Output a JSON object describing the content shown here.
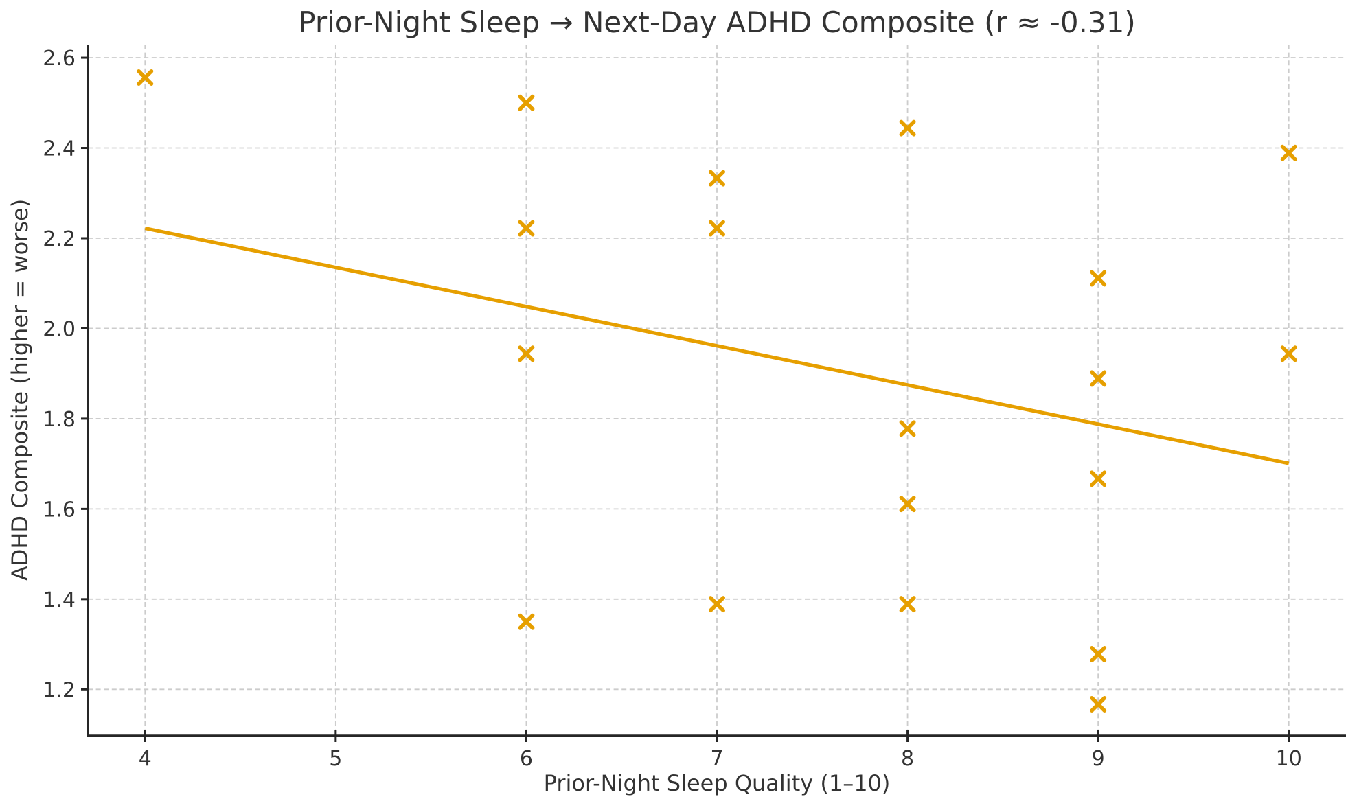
{
  "chart_data": {
    "type": "scatter",
    "title": "Prior-Night Sleep → Next-Day ADHD Composite (r ≈ -0.31)",
    "xlabel": "Prior-Night Sleep Quality (1–10)",
    "ylabel": "ADHD Composite (higher = worse)",
    "correlation_r": -0.31,
    "marker_style": "x",
    "grid": true,
    "legend": null,
    "xlim": [
      3.7,
      10.3
    ],
    "ylim": [
      1.097,
      2.629
    ],
    "xticks": [
      4,
      5,
      6,
      7,
      8,
      9,
      10
    ],
    "yticks": [
      1.2,
      1.4,
      1.6,
      1.8,
      2.0,
      2.2,
      2.4,
      2.6
    ],
    "points": [
      {
        "x": 4,
        "y": 2.556
      },
      {
        "x": 6,
        "y": 2.5
      },
      {
        "x": 6,
        "y": 2.222
      },
      {
        "x": 6,
        "y": 1.944
      },
      {
        "x": 6,
        "y": 1.35
      },
      {
        "x": 7,
        "y": 2.333
      },
      {
        "x": 7,
        "y": 2.222
      },
      {
        "x": 7,
        "y": 1.389
      },
      {
        "x": 8,
        "y": 2.444
      },
      {
        "x": 8,
        "y": 1.778
      },
      {
        "x": 8,
        "y": 1.611
      },
      {
        "x": 8,
        "y": 1.389
      },
      {
        "x": 9,
        "y": 2.111
      },
      {
        "x": 9,
        "y": 1.889
      },
      {
        "x": 9,
        "y": 1.667
      },
      {
        "x": 9,
        "y": 1.278
      },
      {
        "x": 9,
        "y": 1.167
      },
      {
        "x": 10,
        "y": 2.389
      },
      {
        "x": 10,
        "y": 1.944
      }
    ],
    "trend_line": {
      "x_start": 4.0,
      "y_start": 2.222,
      "x_end": 10.0,
      "y_end": 1.701
    },
    "colors": {
      "points": "#E69F00",
      "trend_line": "#E69F00",
      "grid": "#cccccc",
      "axis": "#262626",
      "text": "#333333",
      "background": "#ffffff"
    }
  }
}
